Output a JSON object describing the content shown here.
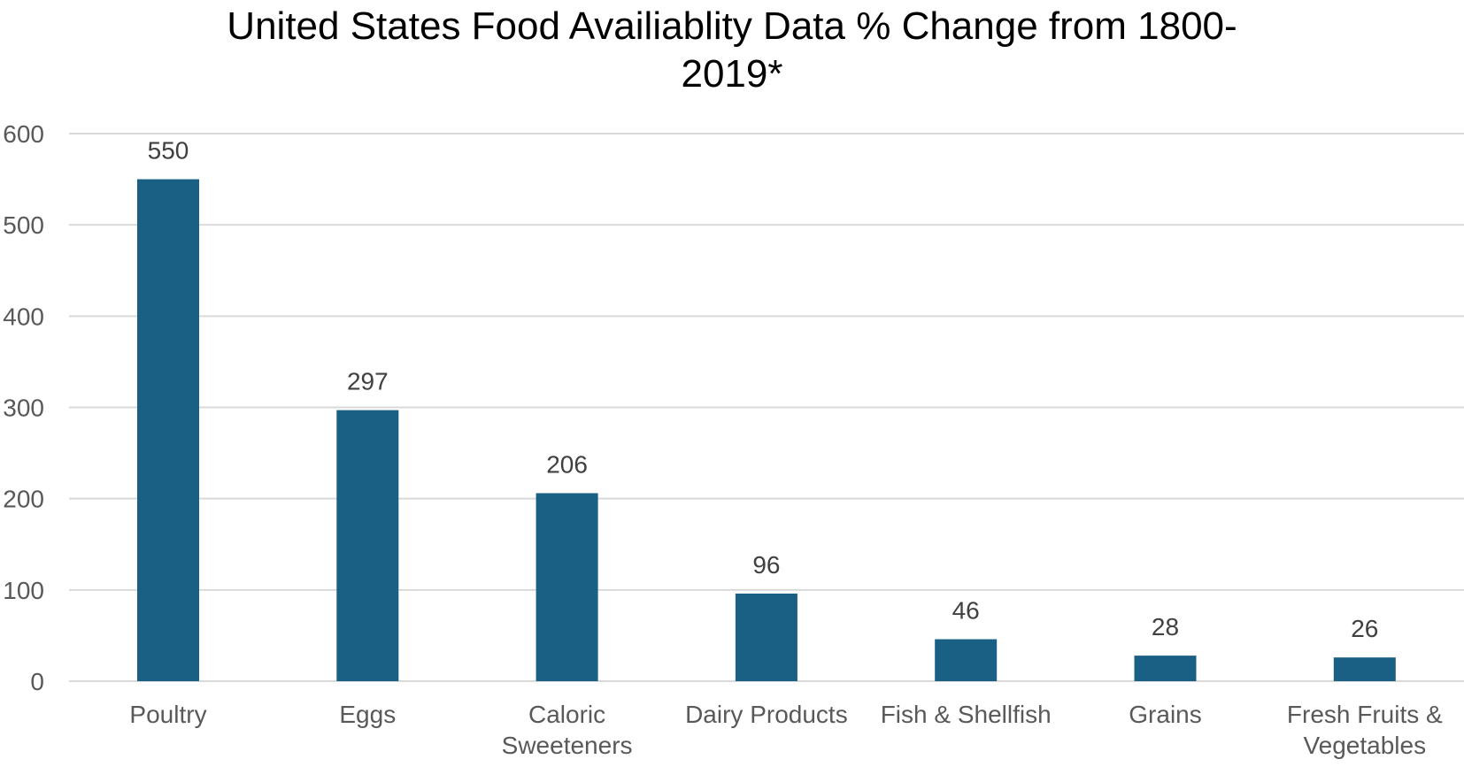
{
  "chart_data": {
    "type": "bar",
    "title_lines": [
      "United States Food Availiablity Data % Change from 1800-",
      "2019*"
    ],
    "categories": [
      [
        "Poultry"
      ],
      [
        "Eggs"
      ],
      [
        "Caloric",
        "Sweeteners"
      ],
      [
        "Dairy Products"
      ],
      [
        "Fish & Shellfish"
      ],
      [
        "Grains"
      ],
      [
        "Fresh Fruits &",
        "Vegetables"
      ]
    ],
    "values": [
      550,
      297,
      206,
      96,
      46,
      28,
      26
    ],
    "data_labels": [
      "550",
      "297",
      "206",
      "96",
      "46",
      "28",
      "26"
    ],
    "ylim": [
      0,
      600
    ],
    "yticks": [
      0,
      100,
      200,
      300,
      400,
      500,
      600
    ],
    "ytick_labels": [
      "0",
      "100",
      "200",
      "300",
      "400",
      "500",
      "600"
    ],
    "xlabel": "",
    "ylabel": "",
    "grid": true,
    "bar_color": "#1a5f84",
    "grid_color": "#d9d9d9"
  }
}
